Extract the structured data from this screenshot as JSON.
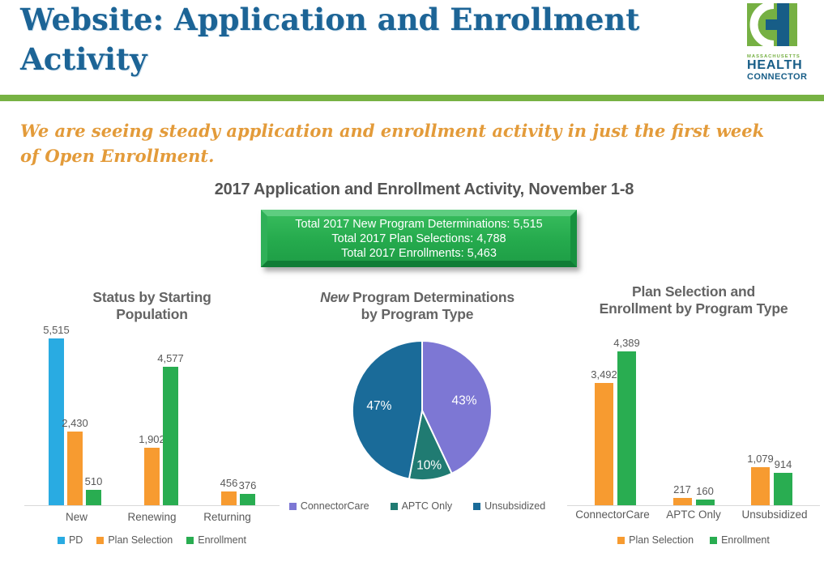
{
  "header": {
    "title_line1": "Website: Application and Enrollment",
    "title_line2": "Activity",
    "logo": {
      "state": "MASSACHUSETTS",
      "name_line1": "HEALTH",
      "name_line2": "CONNECTOR"
    }
  },
  "subtitle": {
    "line1": "We are seeing steady application and enrollment activity in just the first week",
    "line2": "of Open Enrollment.",
    "full": "We are seeing steady application and enrollment activity in just the first week of Open Enrollment."
  },
  "section_title": "2017 Application and Enrollment Activity, November 1-8",
  "totals_box": {
    "lines": [
      "Total 2017 New Program Determinations: 5,515",
      "Total 2017 Plan Selections: 4,788",
      "Total 2017 Enrollments: 5,463"
    ]
  },
  "colors": {
    "title_blue": "#1c6496",
    "accent_green": "#77b243",
    "logo_green": "#76b043",
    "logo_blue": "#175d87",
    "subtitle_orange": "#e39b3a",
    "box_green": "#25aa4d",
    "bar_blue": "#29abe2",
    "bar_orange": "#f79b30",
    "bar_green": "#29ad51",
    "pie_purple": "#7d77d4",
    "pie_teal": "#207b72",
    "pie_darkblue": "#1a6b99",
    "text_gray": "#595959"
  },
  "chart_data": [
    {
      "type": "bar",
      "title": "Status by Starting Population",
      "title_lines": [
        "Status by Starting",
        "Population"
      ],
      "categories": [
        "New",
        "Renewing",
        "Returning"
      ],
      "series": [
        {
          "name": "PD",
          "color": "#29abe2",
          "values": [
            5515,
            null,
            null
          ]
        },
        {
          "name": "Plan Selection",
          "color": "#f79b30",
          "values": [
            2430,
            1902,
            456
          ]
        },
        {
          "name": "Enrollment",
          "color": "#29ad51",
          "values": [
            510,
            4577,
            376
          ]
        }
      ],
      "ylim": [
        0,
        5515
      ],
      "grid": false,
      "legend_position": "bottom"
    },
    {
      "type": "pie",
      "title": "New Program Determinations by Program Type",
      "title_word_italic": "New",
      "title_line1_rest": " Program Determinations",
      "title_line2": "by Program Type",
      "slices": [
        {
          "label": "ConnectorCare",
          "pct": 43,
          "color": "#7d77d4"
        },
        {
          "label": "APTC Only",
          "pct": 10,
          "color": "#207b72"
        },
        {
          "label": "Unsubsidized",
          "pct": 47,
          "color": "#1a6b99"
        }
      ],
      "start_angle": "12 o'clock, clockwise",
      "legend_position": "bottom"
    },
    {
      "type": "bar",
      "title": "Plan Selection and Enrollment by Program Type",
      "title_lines": [
        "Plan Selection and",
        "Enrollment by Program Type"
      ],
      "categories": [
        "ConnectorCare",
        "APTC Only",
        "Unsubsidized"
      ],
      "series": [
        {
          "name": "Plan Selection",
          "color": "#f79b30",
          "values": [
            3492,
            217,
            1079
          ]
        },
        {
          "name": "Enrollment",
          "color": "#29ad51",
          "values": [
            4389,
            160,
            914
          ]
        }
      ],
      "ylim": [
        0,
        4389
      ],
      "grid": false,
      "legend_position": "bottom"
    }
  ]
}
